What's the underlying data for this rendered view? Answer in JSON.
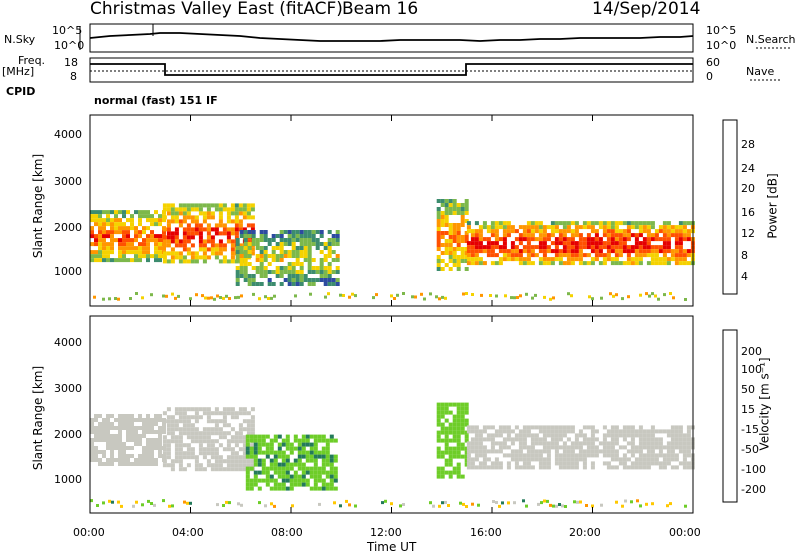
{
  "header": {
    "title": "Christmas Valley East (fitACF)",
    "beam": "Beam 16",
    "date": "14/Sep/2014"
  },
  "top_panels": {
    "nsky_label": "N.Sky",
    "nsearch_label": "N.Search",
    "noise_ticks": [
      "10^5",
      "10^0"
    ],
    "freq_label_1": "Freq.",
    "freq_label_2": "[MHz]",
    "freq_ticks": [
      "18",
      "8"
    ],
    "nave_label": "Nave",
    "nave_ticks": [
      "60",
      "0"
    ],
    "cpid_label": "CPID",
    "cpid_value": "normal (fast) 151 IF"
  },
  "colorbars": {
    "power": {
      "label": "Power [dB]",
      "ticks": [
        "28",
        "24",
        "20",
        "16",
        "12",
        "8",
        "4"
      ],
      "colors": [
        "#e50000",
        "#ff5000",
        "#ff9600",
        "#f5d200",
        "#7db84b",
        "#3c8c6e",
        "#2d4ba0",
        "#0019ff"
      ]
    },
    "velocity": {
      "label": "Velocity [m s⁻¹]",
      "ticks": [
        "200",
        "100",
        "50",
        "15",
        "-15",
        "-50",
        "-100",
        "-200"
      ],
      "colors": [
        "#1e3caa",
        "#2d78c8",
        "#237a5a",
        "#6ecd28",
        "#c8c8c0",
        "#ffc800",
        "#ff9600",
        "#ff5a00",
        "#e60000"
      ]
    }
  },
  "axes": {
    "ylabel": "Slant Range [km]",
    "y_ticks": [
      "4000",
      "3000",
      "2000",
      "1000"
    ],
    "x_ticks": [
      "00:00",
      "04:00",
      "08:00",
      "12:00",
      "16:00",
      "20:00",
      "00:00"
    ],
    "xlabel": "Time UT"
  },
  "chart_data": [
    {
      "type": "heatmap",
      "quantity": "Power",
      "units": "dB",
      "xlabel": "",
      "ylabel": "Slant Range [km]",
      "xlim_hours": [
        0,
        24
      ],
      "ylim_km": [
        180,
        4500
      ],
      "clim": [
        0,
        30
      ],
      "segments": [
        {
          "t": [
            0.0,
            2.9
          ],
          "r": [
            1250,
            2350
          ],
          "level": 22
        },
        {
          "t": [
            2.9,
            6.5
          ],
          "r": [
            1150,
            2500
          ],
          "level": 24
        },
        {
          "t": [
            5.8,
            9.8
          ],
          "r": [
            700,
            1900
          ],
          "level": 14
        },
        {
          "t": [
            13.8,
            15.0
          ],
          "r": [
            1000,
            2600
          ],
          "level": 20
        },
        {
          "t": [
            15.0,
            24.0
          ],
          "r": [
            1150,
            2100
          ],
          "level": 26
        }
      ]
    },
    {
      "type": "heatmap",
      "quantity": "Velocity",
      "units": "m s-1",
      "xlabel": "Time UT",
      "ylabel": "Slant Range [km]",
      "xlim_hours": [
        0,
        24
      ],
      "ylim_km": [
        180,
        4500
      ],
      "clim": [
        -200,
        200
      ],
      "segments": [
        {
          "t": [
            0.0,
            2.9
          ],
          "r": [
            1250,
            2350
          ],
          "level": 0
        },
        {
          "t": [
            2.9,
            6.5
          ],
          "r": [
            1150,
            2500
          ],
          "level": 0
        },
        {
          "t": [
            6.2,
            9.8
          ],
          "r": [
            700,
            1900
          ],
          "level": 40
        },
        {
          "t": [
            13.8,
            15.0
          ],
          "r": [
            1000,
            2600
          ],
          "level": 30
        },
        {
          "t": [
            15.0,
            24.0
          ],
          "r": [
            1150,
            2100
          ],
          "level": 0
        }
      ]
    }
  ]
}
